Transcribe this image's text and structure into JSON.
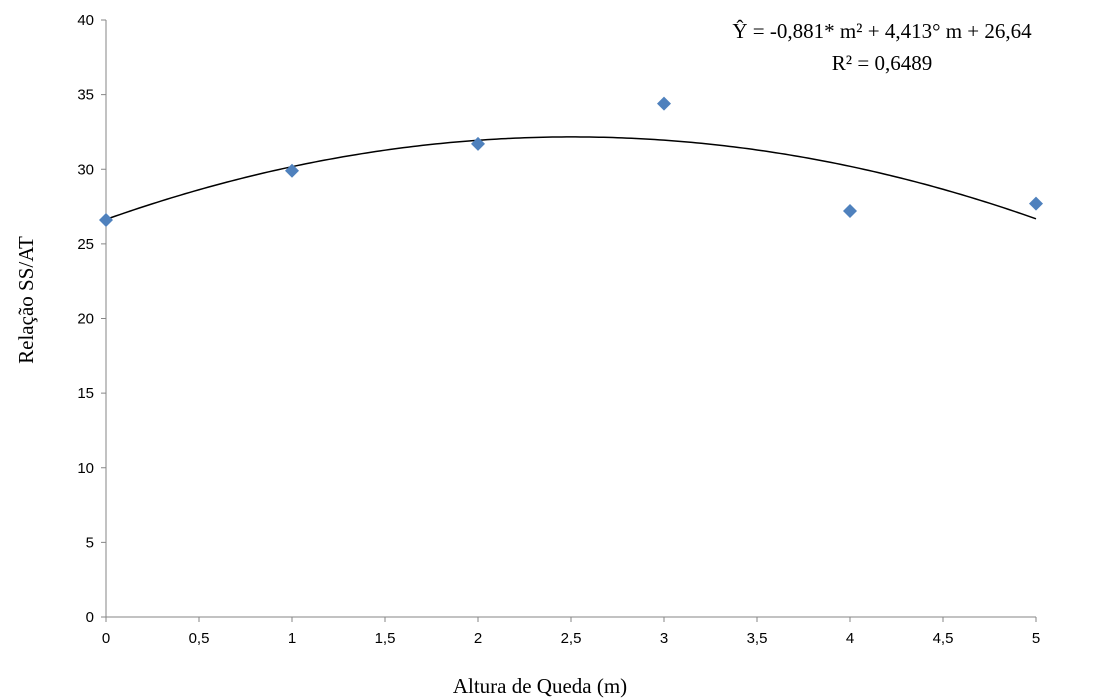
{
  "chart_data": {
    "type": "scatter",
    "xlabel": "Altura de Queda (m)",
    "ylabel": "Relação SS/AT",
    "xlim": [
      0,
      5
    ],
    "ylim": [
      0,
      40
    ],
    "x_ticks": [
      "0",
      "0,5",
      "1",
      "1,5",
      "2",
      "2,5",
      "3",
      "3,5",
      "4",
      "4,5",
      "5"
    ],
    "y_ticks": [
      "0",
      "5",
      "10",
      "15",
      "20",
      "25",
      "30",
      "35",
      "40"
    ],
    "grid": false,
    "legend": "none",
    "series": [
      {
        "marker": "diamond",
        "color": "#4F81BD",
        "x": [
          0,
          1,
          2,
          3,
          4,
          5
        ],
        "y": [
          26.6,
          29.9,
          31.7,
          34.4,
          27.2,
          27.7
        ]
      }
    ],
    "trendline": {
      "type": "polynomial",
      "coefficients": {
        "a": -0.881,
        "b": 4.413,
        "c": 26.64
      },
      "color": "#000000"
    },
    "annotations": {
      "equation": "Ŷ = -0,881* m² + 4,413° m + 26,64",
      "r_squared": "R² = 0,6489"
    }
  }
}
